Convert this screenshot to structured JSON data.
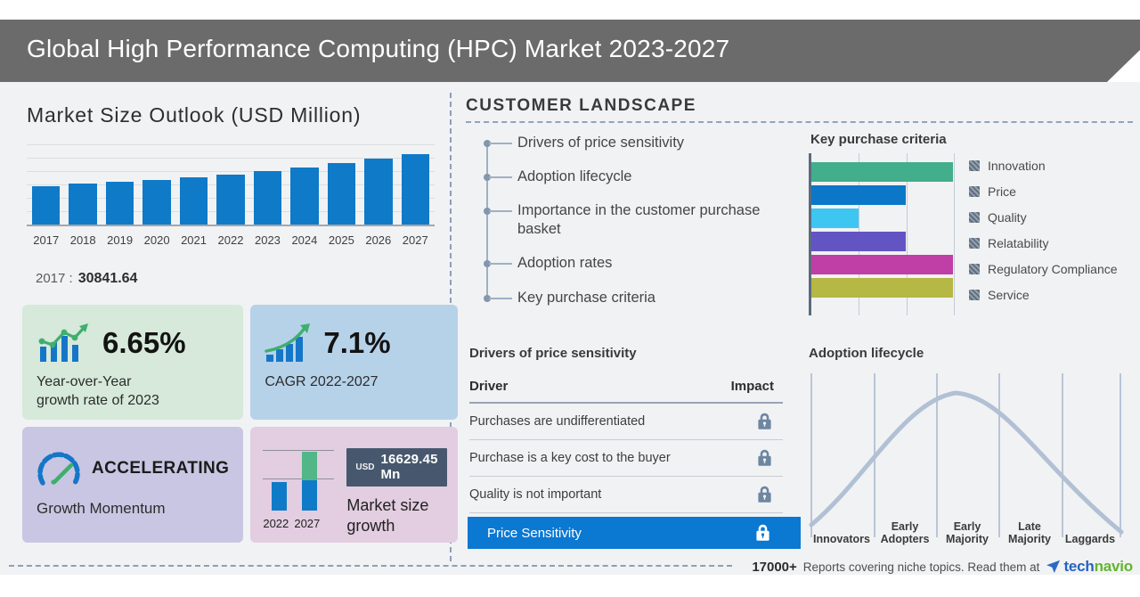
{
  "header": {
    "title": "Global High Performance Computing (HPC) Market 2023-2027"
  },
  "market_outlook": {
    "title": "Market Size Outlook (USD Million)",
    "note_label": "2017 :",
    "note_value": "30841.64"
  },
  "cards": {
    "yoy": {
      "value": "6.65%",
      "desc1": "Year-over-Year",
      "desc2": "growth rate of 2023"
    },
    "cagr": {
      "value": "7.1%",
      "desc": "CAGR 2022-2027"
    },
    "momentum": {
      "status": "ACCELERATING",
      "desc": "Growth Momentum"
    },
    "growth": {
      "currency": "USD",
      "amount": "16629.45 Mn",
      "desc1": "Market size",
      "desc2": "growth",
      "year_left": "2022",
      "year_right": "2027"
    }
  },
  "customer_landscape": {
    "title": "CUSTOMER LANDSCAPE",
    "items": [
      "Drivers of price sensitivity",
      "Adoption lifecycle",
      "Importance in the customer purchase basket",
      "Adoption rates",
      "Key purchase criteria"
    ]
  },
  "price_drivers": {
    "title": "Drivers of price sensitivity",
    "col_driver": "Driver",
    "col_impact": "Impact",
    "rows": [
      {
        "label": "Purchases are undifferentiated",
        "highlight": false
      },
      {
        "label": "Purchase is a key cost to the buyer",
        "highlight": false
      },
      {
        "label": "Quality is not important",
        "highlight": false
      },
      {
        "label": "Price Sensitivity",
        "highlight": true
      }
    ]
  },
  "footer": {
    "count": "17000+",
    "text": "Reports covering niche topics. Read them at",
    "brand_tech": "tech",
    "brand_navio": "navio"
  },
  "colors": {
    "bar_blue": "#0f7ac8",
    "accent_green": "#3fae6e",
    "highlight_row_blue": "#0b78d2",
    "badge_slate": "#47586e",
    "curve_gray_blue": "#b2c0d4"
  },
  "chart_data": [
    {
      "type": "bar",
      "title": "Market Size Outlook (USD Million)",
      "categories": [
        "2017",
        "2018",
        "2019",
        "2020",
        "2021",
        "2022",
        "2023",
        "2024",
        "2025",
        "2026",
        "2027"
      ],
      "values": [
        30841.64,
        33300,
        34800,
        36500,
        38100,
        40800,
        43500,
        46700,
        49800,
        53700,
        57400
      ],
      "labeled_values": {
        "2017": 30841.64
      },
      "bar_color": "#0f7ac8",
      "ylim": [
        0,
        60000
      ],
      "grid": true
    },
    {
      "type": "bar",
      "orientation": "horizontal",
      "title": "Key purchase criteria",
      "categories": [
        "Innovation",
        "Price",
        "Quality",
        "Relatability",
        "Regulatory Compliance",
        "Service"
      ],
      "values": [
        3,
        2,
        1,
        2,
        3,
        3
      ],
      "xlim": [
        0,
        3
      ],
      "colors": [
        "#43ae8c",
        "#0c77c8",
        "#3ec6f2",
        "#6354c4",
        "#bf3fa6",
        "#b5b844"
      ],
      "legend_position": "right"
    },
    {
      "type": "bar",
      "title": "Market size growth",
      "categories": [
        "2022",
        "2027"
      ],
      "values": [
        40770,
        57399
      ],
      "growth_usd_mn": 16629.45
    },
    {
      "type": "line",
      "title": "Adoption lifecycle",
      "shape": "bell curve",
      "stages": [
        "Innovators",
        "Early Adopters",
        "Early Majority",
        "Late Majority",
        "Laggards"
      ]
    }
  ]
}
